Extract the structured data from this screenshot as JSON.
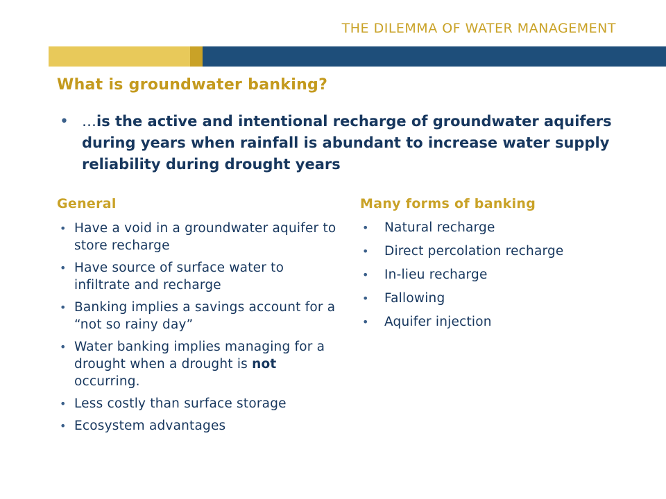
{
  "header": {
    "title": "THE DILEMMA OF WATER MANAGEMENT",
    "colors": {
      "gold_light": "#e8c95a",
      "gold_dark": "#c9a227",
      "blue": "#1e4e7a"
    }
  },
  "slide": {
    "title": "What is groundwater banking?",
    "main_bullet": {
      "prefix": "…",
      "text": "is the active and intentional recharge of groundwater aquifers during years when rainfall is abundant to increase water supply reliability during drought years"
    }
  },
  "left_column": {
    "heading": "General",
    "items": [
      "Have a void in a groundwater aquifer to store recharge",
      "Have source of surface water to infiltrate and recharge",
      "Banking implies a savings account for a “not so rainy day”",
      {
        "before": "Water banking implies managing for a drought when a drought is ",
        "emphasis": "not",
        "after": " occurring."
      },
      "Less costly than surface storage",
      "Ecosystem advantages"
    ]
  },
  "right_column": {
    "heading": "Many forms of banking",
    "items": [
      "Natural recharge",
      "Direct percolation recharge",
      "In-lieu recharge",
      "Fallowing",
      "Aquifer injection"
    ]
  },
  "bullet_glyph": "•"
}
